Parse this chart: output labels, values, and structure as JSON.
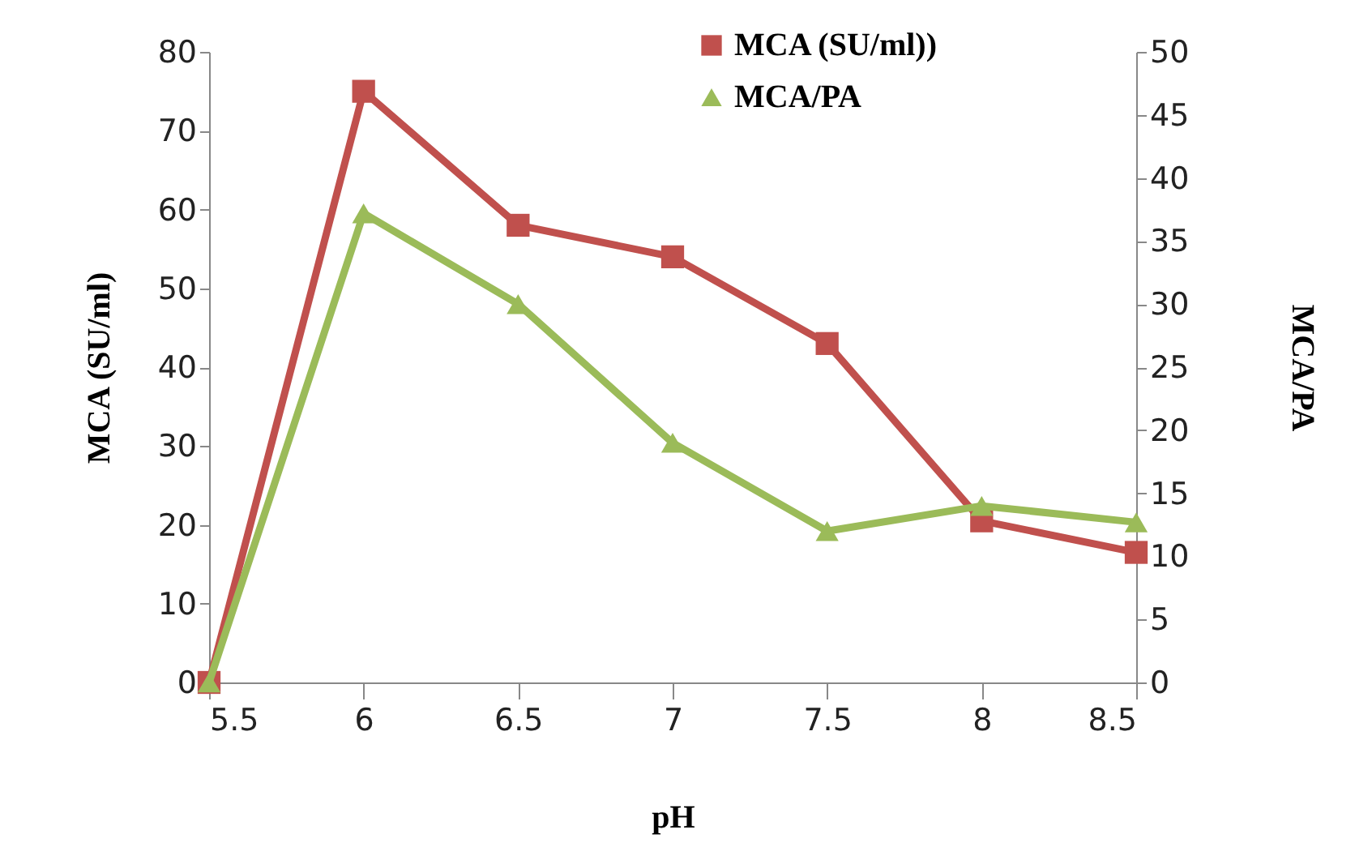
{
  "chart_data": {
    "type": "line",
    "xlabel": "pH",
    "ylabel": "MCA (SU/ml)",
    "y2label": "MCA/PA",
    "x": [
      5.5,
      6,
      6.5,
      7,
      7.5,
      8,
      8.5
    ],
    "xlim": [
      5.5,
      8.5
    ],
    "xticks": [
      5.5,
      6,
      6.5,
      7,
      7.5,
      8,
      8.5
    ],
    "ylim": [
      0,
      80
    ],
    "yticks": [
      0,
      10,
      20,
      30,
      40,
      50,
      60,
      70,
      80
    ],
    "y2lim": [
      0,
      50
    ],
    "y2ticks": [
      0,
      5,
      10,
      15,
      20,
      25,
      30,
      35,
      40,
      45,
      50
    ],
    "grid": false,
    "legend": "top right",
    "line_style": "solid",
    "series": [
      {
        "name": "MCA (SU/ml))",
        "color": "#c0504d",
        "marker": "square",
        "values": [
          0,
          75,
          58,
          54,
          43,
          20.5,
          16.5
        ]
      },
      {
        "name": "MCA/PA",
        "color": "#9bbb59",
        "marker": "triangle",
        "axis": "y2",
        "values": [
          0,
          37.2,
          30,
          19,
          12,
          14,
          12.7
        ]
      }
    ]
  }
}
